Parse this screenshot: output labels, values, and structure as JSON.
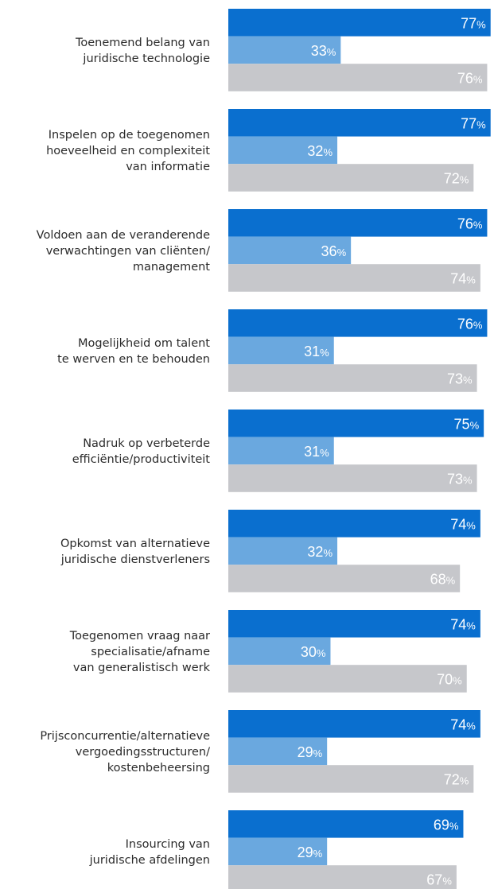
{
  "chart_data": {
    "type": "barh",
    "categories": [
      "Toenemend belang van\njuridische technologie",
      "Inspelen op de toegenomen\nhoeveelheid en complexiteit\nvan informatie",
      "Voldoen aan de veranderende\nverwachtingen van cliënten/\nmanagement",
      "Mogelijkheid om talent\nte werven en te behouden",
      "Nadruk op verbeterde\nefficiëntie/productiviteit",
      "Opkomst van alternatieve\njuridische dienstverleners",
      "Toegenomen vraag naar\nspecialisatie/afname\nvan generalistisch werk",
      "Prijsconcurrentie/alternatieve\nvergoedingsstructuren/\nkostenbeheersing",
      "Insourcing van\njuridische afdelingen"
    ],
    "series": [
      {
        "color": "#0a6fcf",
        "values": [
          77,
          77,
          76,
          76,
          75,
          74,
          74,
          74,
          69
        ],
        "value_labels": [
          "77%",
          "77%",
          "76%",
          "76%",
          "75%",
          "74%",
          "74%",
          "74%",
          "69%"
        ]
      },
      {
        "color": "#6aa8df",
        "values": [
          33,
          32,
          36,
          31,
          31,
          32,
          30,
          29,
          29
        ],
        "value_labels": [
          "33%",
          "32%",
          "36%",
          "31%",
          "31%",
          "32%",
          "30%",
          "29%",
          "29%"
        ]
      },
      {
        "color": "#c6c7cb",
        "values": [
          76,
          72,
          74,
          73,
          73,
          68,
          70,
          72,
          67
        ],
        "value_labels": [
          "76%",
          "72%",
          "74%",
          "73%",
          "73%",
          "68%",
          "70%",
          "72%",
          "67%"
        ]
      }
    ],
    "xlim": [
      0,
      78
    ]
  }
}
